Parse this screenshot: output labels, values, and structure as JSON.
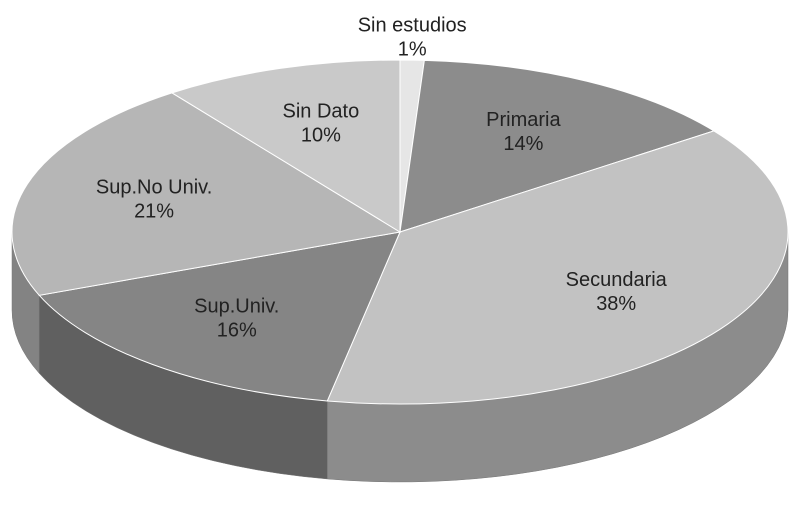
{
  "chart_data": {
    "type": "pie3d",
    "categories": [
      "Sin estudios",
      "Primaria",
      "Secundaria",
      "Sup.Univ.",
      "Sup.No Univ.",
      "Sin Dato"
    ],
    "values": [
      1,
      14,
      38,
      16,
      21,
      10
    ],
    "value_labels": [
      "1%",
      "14%",
      "38%",
      "16%",
      "21%",
      "10%"
    ],
    "colors": [
      "#e6e6e6",
      "#8c8c8c",
      "#c2c2c2",
      "#858585",
      "#b6b6b6",
      "#c9c9c9"
    ]
  }
}
